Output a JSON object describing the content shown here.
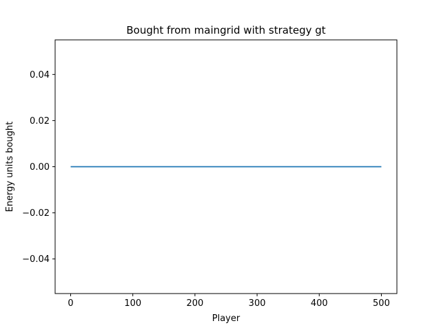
{
  "chart_data": {
    "type": "line",
    "title": "Bought from maingrid with strategy gt",
    "xlabel": "Player",
    "ylabel": "Energy units bought",
    "xlim": [
      -25,
      525
    ],
    "ylim": [
      -0.055,
      0.055
    ],
    "xticks": [
      0,
      100,
      200,
      300,
      400,
      500
    ],
    "xtick_labels": [
      "0",
      "100",
      "200",
      "300",
      "400",
      "500"
    ],
    "yticks": [
      -0.04,
      -0.02,
      0.0,
      0.02,
      0.04
    ],
    "ytick_labels": [
      "−0.04",
      "−0.02",
      "0.00",
      "0.02",
      "0.04"
    ],
    "grid": false,
    "legend": "none",
    "series": [
      {
        "color": "#1f77b4",
        "x": [
          0,
          500
        ],
        "y": [
          0,
          0
        ]
      }
    ]
  }
}
